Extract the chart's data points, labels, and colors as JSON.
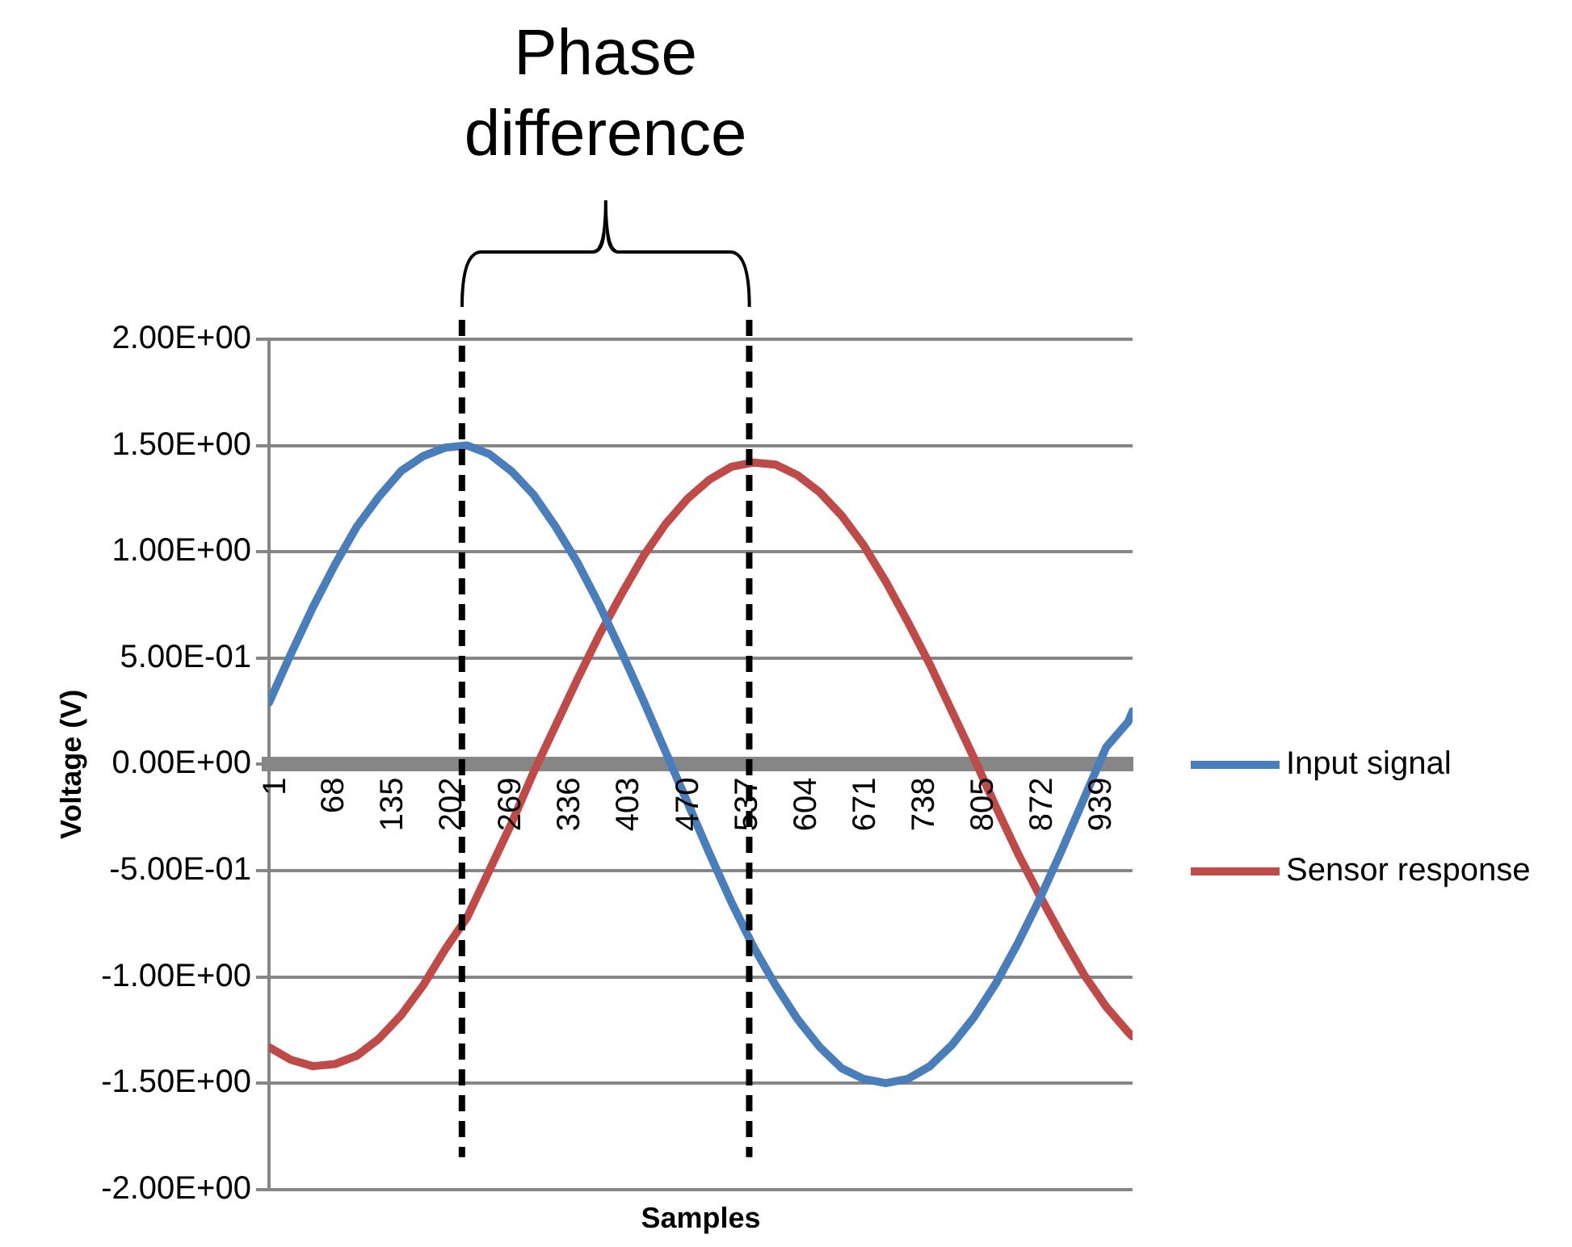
{
  "chart_data": {
    "type": "line",
    "xlabel": "Samples",
    "ylabel": "Voltage (V)",
    "annotations": [
      "Phase difference"
    ],
    "x": [
      1,
      26,
      51,
      76,
      101,
      126,
      151,
      176,
      201,
      226,
      251,
      276,
      301,
      326,
      351,
      376,
      401,
      426,
      451,
      476,
      501,
      526,
      551,
      576,
      601,
      626,
      651,
      676,
      701,
      726,
      751,
      776,
      801,
      826,
      851,
      876,
      901,
      926,
      951,
      976,
      981
    ],
    "series": [
      {
        "name": "Input signal",
        "color": "#4a7ebb",
        "values": [
          0.29,
          0.52,
          0.74,
          0.94,
          1.12,
          1.26,
          1.38,
          1.45,
          1.49,
          1.5,
          1.46,
          1.38,
          1.27,
          1.12,
          0.95,
          0.75,
          0.53,
          0.3,
          0.06,
          -0.18,
          -0.42,
          -0.65,
          -0.86,
          -1.04,
          -1.2,
          -1.33,
          -1.43,
          -1.48,
          -1.5,
          -1.48,
          -1.42,
          -1.32,
          -1.19,
          -1.03,
          -0.84,
          -0.63,
          -0.4,
          -0.16,
          0.08,
          0.2,
          0.25
        ]
      },
      {
        "name": "Sensor response",
        "color": "#be4b48",
        "values": [
          -1.33,
          -1.39,
          -1.42,
          -1.41,
          -1.37,
          -1.29,
          -1.18,
          -1.04,
          -0.87,
          -0.72,
          -0.5,
          -0.28,
          -0.04,
          0.18,
          0.4,
          0.61,
          0.8,
          0.98,
          1.13,
          1.25,
          1.34,
          1.4,
          1.42,
          1.41,
          1.36,
          1.28,
          1.17,
          1.03,
          0.86,
          0.67,
          0.47,
          0.25,
          0.03,
          -0.2,
          -0.42,
          -0.62,
          -0.81,
          -0.99,
          -1.14,
          -1.26,
          -1.28
        ]
      }
    ],
    "xlim": [
      1,
      981
    ],
    "xticks": [
      1,
      68,
      135,
      202,
      269,
      336,
      403,
      470,
      537,
      604,
      671,
      738,
      805,
      872,
      939
    ],
    "ylim": [
      -2,
      2
    ],
    "yticks": [
      {
        "value": -2,
        "label": "-2.00E+00"
      },
      {
        "value": -1.5,
        "label": "-1.50E+00"
      },
      {
        "value": -1,
        "label": "-1.00E+00"
      },
      {
        "value": -0.5,
        "label": "-5.00E-01"
      },
      {
        "value": 0,
        "label": "0.00E+00"
      },
      {
        "value": 0.5,
        "label": "5.00E-01"
      },
      {
        "value": 1,
        "label": "1.00E+00"
      },
      {
        "value": 1.5,
        "label": "1.50E+00"
      },
      {
        "value": 2,
        "label": "2.00E+00"
      }
    ],
    "ref_lines": [
      {
        "axis": "x",
        "value": 220,
        "color": "#000000",
        "line_style": "dashed"
      },
      {
        "axis": "x",
        "value": 546,
        "color": "#000000",
        "line_style": "dashed"
      }
    ],
    "grid": "y",
    "legend": "right",
    "marker": "none",
    "line_style": "solid"
  }
}
